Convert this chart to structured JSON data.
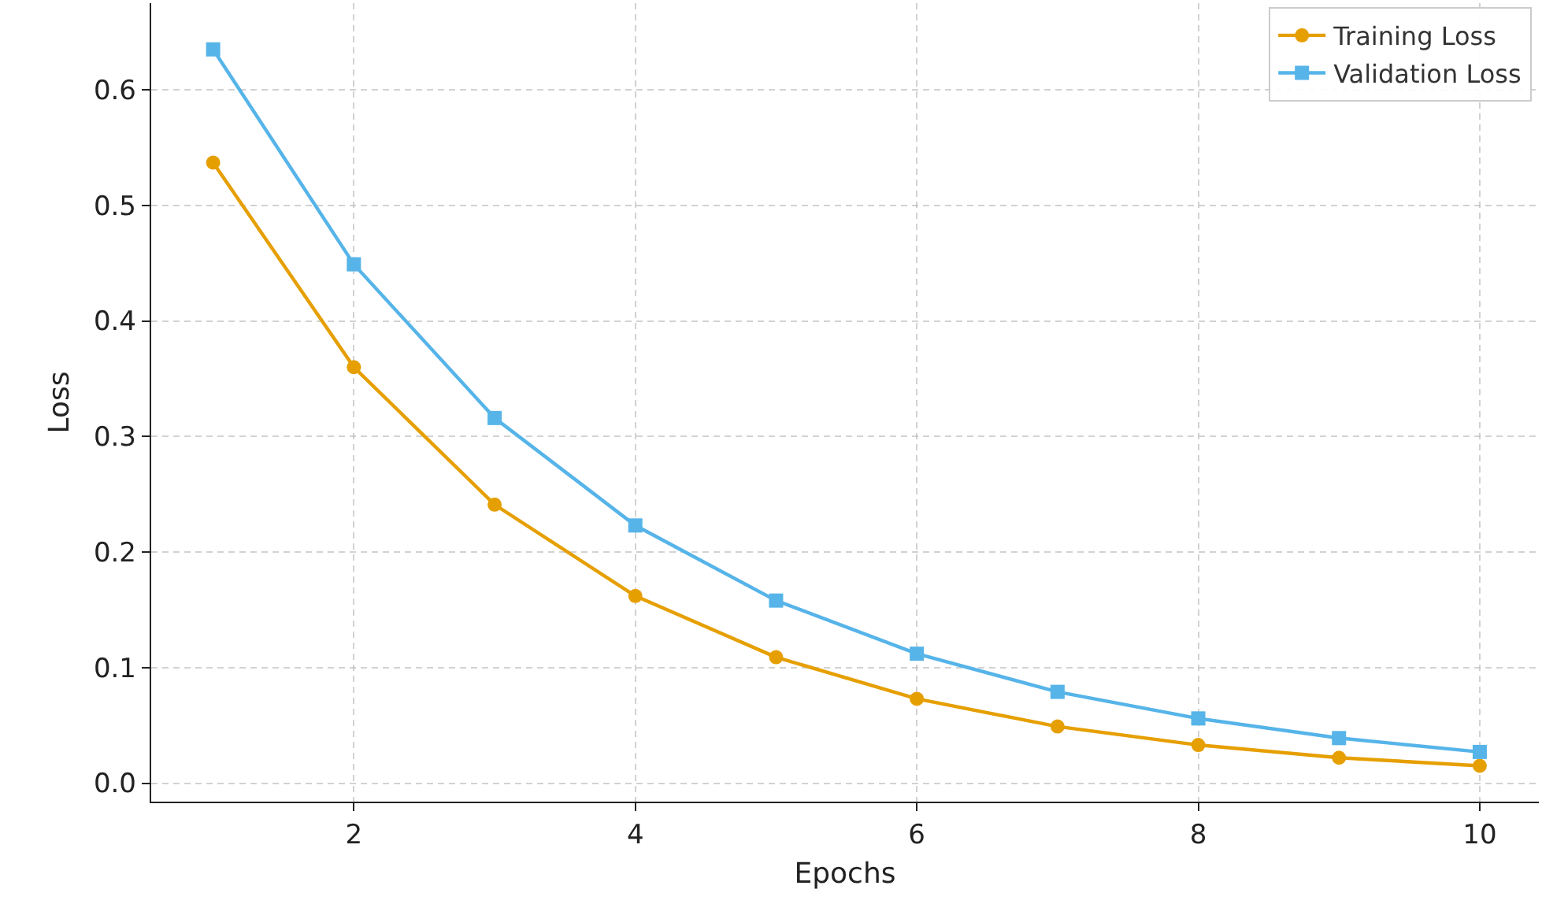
{
  "chart_data": {
    "type": "line",
    "xlabel": "Epochs",
    "ylabel": "Loss",
    "x": [
      1,
      2,
      3,
      4,
      5,
      6,
      7,
      8,
      9,
      10
    ],
    "series": [
      {
        "name": "Training Loss",
        "color": "#e69f00",
        "marker": "circle",
        "values": [
          0.537,
          0.36,
          0.241,
          0.162,
          0.109,
          0.073,
          0.049,
          0.033,
          0.022,
          0.015
        ]
      },
      {
        "name": "Validation Loss",
        "color": "#56b4e9",
        "marker": "square",
        "values": [
          0.635,
          0.449,
          0.316,
          0.223,
          0.158,
          0.112,
          0.079,
          0.056,
          0.039,
          0.027
        ]
      }
    ],
    "xlim": [
      0.56,
      10.42
    ],
    "ylim": [
      -0.016,
      0.675
    ],
    "xticks": [
      2,
      4,
      6,
      8,
      10
    ],
    "yticks": [
      {
        "value": 0,
        "label": "0.0"
      },
      0.1,
      0.2,
      0.3,
      0.4,
      0.5,
      0.6
    ],
    "grid": true,
    "legend": "top right",
    "line_style": "solid"
  }
}
